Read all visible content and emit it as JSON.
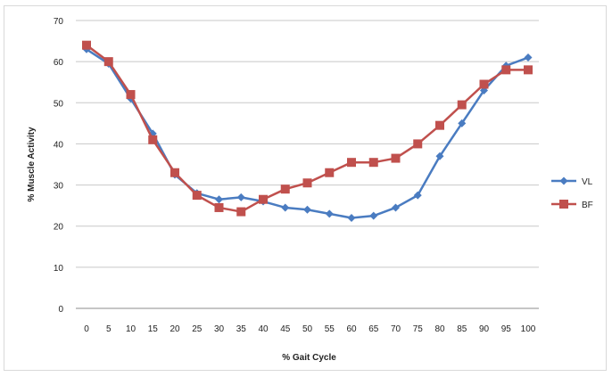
{
  "chart_data": {
    "type": "line",
    "title": "",
    "xlabel": "% Gait Cycle",
    "ylabel": "% Muscle Activity",
    "x": [
      0,
      5,
      10,
      15,
      20,
      25,
      30,
      35,
      40,
      45,
      50,
      55,
      60,
      65,
      70,
      75,
      80,
      85,
      90,
      95,
      100
    ],
    "ylim": [
      0,
      70
    ],
    "yticks": [
      0,
      10,
      20,
      30,
      40,
      50,
      60,
      70
    ],
    "grid": true,
    "legend": "right",
    "series": [
      {
        "name": "VL",
        "color": "#4a7cc1",
        "marker": "diamond",
        "values": [
          63,
          59.5,
          51,
          42.5,
          32.5,
          28,
          26.5,
          27,
          26,
          24.5,
          24,
          23,
          22,
          22.5,
          24.5,
          27.5,
          37,
          45,
          53,
          59,
          61
        ]
      },
      {
        "name": "BF",
        "color": "#c0504d",
        "marker": "square",
        "values": [
          64,
          60,
          52,
          41,
          33,
          27.5,
          24.5,
          23.5,
          26.5,
          29,
          30.5,
          33,
          35.5,
          35.5,
          36.5,
          40,
          44.5,
          49.5,
          54.5,
          58,
          58
        ]
      }
    ]
  }
}
